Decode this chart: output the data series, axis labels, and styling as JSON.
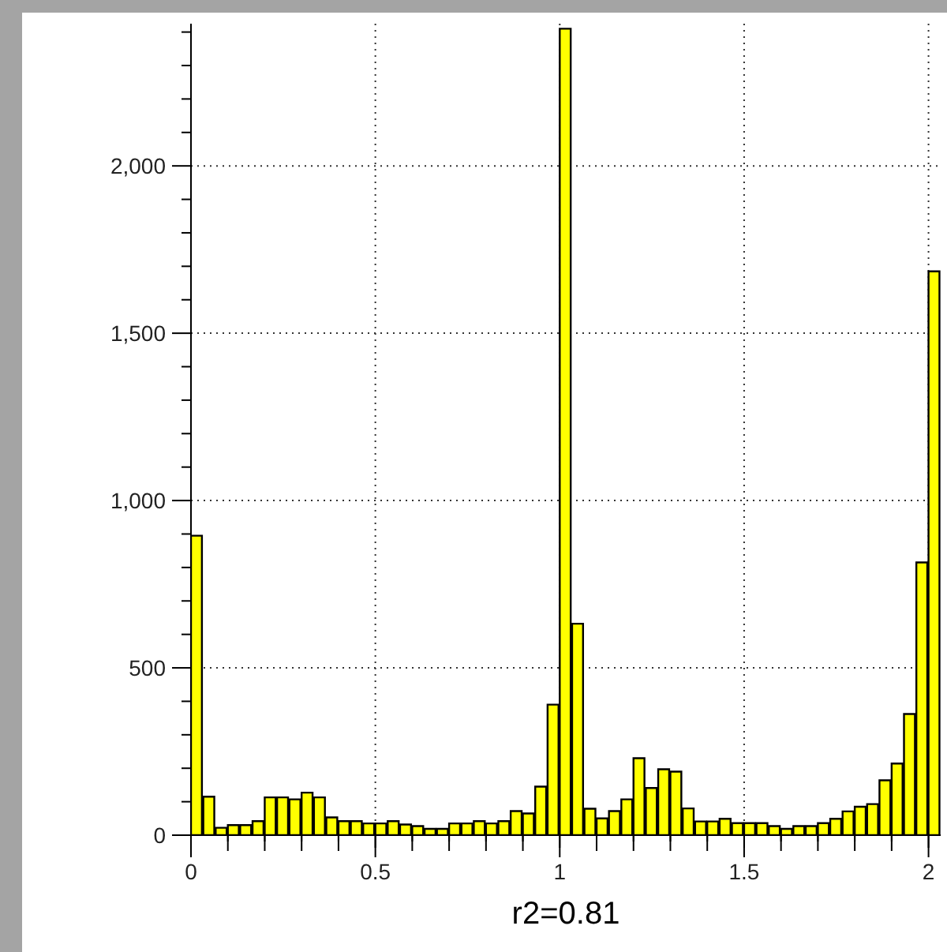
{
  "chart_data": {
    "type": "histogram",
    "xlabel": "r2=0.81",
    "bins": [
      0,
      0.033,
      0.067,
      0.1,
      0.133,
      0.167,
      0.2,
      0.233,
      0.267,
      0.3,
      0.333,
      0.367,
      0.4,
      0.433,
      0.467,
      0.5,
      0.533,
      0.567,
      0.6,
      0.633,
      0.667,
      0.7,
      0.733,
      0.767,
      0.8,
      0.833,
      0.867,
      0.9,
      0.933,
      0.967,
      1,
      1.033,
      1.067,
      1.1,
      1.133,
      1.167,
      1.2,
      1.233,
      1.267,
      1.3,
      1.333,
      1.367,
      1.4,
      1.433,
      1.467,
      1.5,
      1.533,
      1.567,
      1.6,
      1.633,
      1.667,
      1.7,
      1.733,
      1.767,
      1.8,
      1.833,
      1.867,
      1.9,
      1.933,
      1.967,
      2,
      2.033
    ],
    "values": [
      895,
      115,
      22,
      30,
      30,
      42,
      113,
      113,
      107,
      127,
      113,
      53,
      42,
      42,
      35,
      35,
      42,
      32,
      27,
      19,
      19,
      35,
      35,
      42,
      35,
      42,
      72,
      65,
      145,
      390,
      2410,
      632,
      79,
      50,
      72,
      107,
      230,
      141,
      197,
      190,
      80,
      41,
      41,
      49,
      36,
      36,
      36,
      27,
      19,
      27,
      27,
      36,
      49,
      71,
      85,
      93,
      164,
      214,
      362,
      815,
      1685
    ],
    "color": "#ffff00",
    "xlim": [
      0,
      2.033
    ],
    "xticks": [
      0,
      {
        "value": 0.1,
        "label": null
      },
      {
        "value": 0.2,
        "label": null
      },
      {
        "value": 0.3,
        "label": null
      },
      {
        "value": 0.4,
        "label": null
      },
      0.5,
      {
        "value": 0.6,
        "label": null
      },
      {
        "value": 0.7,
        "label": null
      },
      {
        "value": 0.8,
        "label": null
      },
      {
        "value": 0.9,
        "label": null
      },
      1,
      {
        "value": 1.1,
        "label": null
      },
      {
        "value": 1.2,
        "label": null
      },
      {
        "value": 1.3,
        "label": null
      },
      {
        "value": 1.4,
        "label": null
      },
      1.5,
      {
        "value": 1.6,
        "label": null
      },
      {
        "value": 1.7,
        "label": null
      },
      {
        "value": 1.8,
        "label": null
      },
      {
        "value": 1.9,
        "label": null
      },
      2
    ],
    "ylim": [
      0,
      2425
    ],
    "yticks": [
      0,
      {
        "value": 100,
        "label": null
      },
      {
        "value": 200,
        "label": null
      },
      {
        "value": 300,
        "label": null
      },
      {
        "value": 400,
        "label": null
      },
      500,
      {
        "value": 600,
        "label": null
      },
      {
        "value": 700,
        "label": null
      },
      {
        "value": 800,
        "label": null
      },
      {
        "value": 900,
        "label": null
      },
      {
        "value": 1000,
        "label": "1,000"
      },
      {
        "value": 1100,
        "label": null
      },
      {
        "value": 1200,
        "label": null
      },
      {
        "value": 1300,
        "label": null
      },
      {
        "value": 1400,
        "label": null
      },
      {
        "value": 1500,
        "label": "1,500"
      },
      {
        "value": 1600,
        "label": null
      },
      {
        "value": 1700,
        "label": null
      },
      {
        "value": 1800,
        "label": null
      },
      {
        "value": 1900,
        "label": null
      },
      {
        "value": 2000,
        "label": "2,000"
      },
      {
        "value": 2100,
        "label": null
      },
      {
        "value": 2200,
        "label": null
      },
      {
        "value": 2300,
        "label": null
      },
      {
        "value": 2400,
        "label": null
      }
    ],
    "grid": true
  }
}
